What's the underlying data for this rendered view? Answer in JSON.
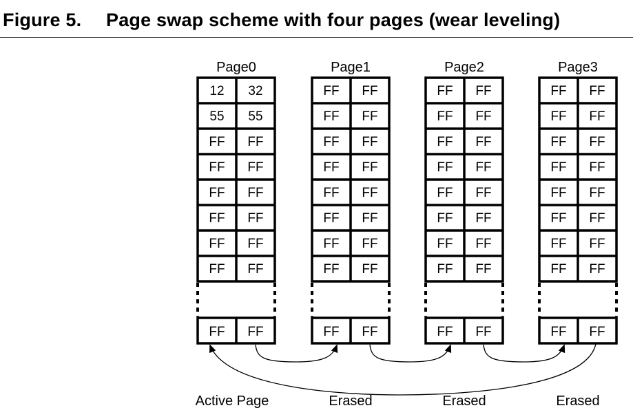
{
  "figure": {
    "number": "Figure 5.",
    "title": "Page swap scheme with four pages (wear leveling)"
  },
  "pages": [
    {
      "name": "Page0",
      "status": "Active Page",
      "rows": [
        [
          "12",
          "32"
        ],
        [
          "55",
          "55"
        ],
        [
          "FF",
          "FF"
        ],
        [
          "FF",
          "FF"
        ],
        [
          "FF",
          "FF"
        ],
        [
          "FF",
          "FF"
        ],
        [
          "FF",
          "FF"
        ],
        [
          "FF",
          "FF"
        ]
      ],
      "last_row": [
        "FF",
        "FF"
      ]
    },
    {
      "name": "Page1",
      "status": "Erased",
      "rows": [
        [
          "FF",
          "FF"
        ],
        [
          "FF",
          "FF"
        ],
        [
          "FF",
          "FF"
        ],
        [
          "FF",
          "FF"
        ],
        [
          "FF",
          "FF"
        ],
        [
          "FF",
          "FF"
        ],
        [
          "FF",
          "FF"
        ],
        [
          "FF",
          "FF"
        ]
      ],
      "last_row": [
        "FF",
        "FF"
      ]
    },
    {
      "name": "Page2",
      "status": "Erased",
      "rows": [
        [
          "FF",
          "FF"
        ],
        [
          "FF",
          "FF"
        ],
        [
          "FF",
          "FF"
        ],
        [
          "FF",
          "FF"
        ],
        [
          "FF",
          "FF"
        ],
        [
          "FF",
          "FF"
        ],
        [
          "FF",
          "FF"
        ],
        [
          "FF",
          "FF"
        ]
      ],
      "last_row": [
        "FF",
        "FF"
      ]
    },
    {
      "name": "Page3",
      "status": "Erased",
      "rows": [
        [
          "FF",
          "FF"
        ],
        [
          "FF",
          "FF"
        ],
        [
          "FF",
          "FF"
        ],
        [
          "FF",
          "FF"
        ],
        [
          "FF",
          "FF"
        ],
        [
          "FF",
          "FF"
        ],
        [
          "FF",
          "FF"
        ],
        [
          "FF",
          "FF"
        ]
      ],
      "last_row": [
        "FF",
        "FF"
      ]
    }
  ],
  "arrows": [
    {
      "from": "Page0",
      "to": "Page1"
    },
    {
      "from": "Page1",
      "to": "Page2"
    },
    {
      "from": "Page2",
      "to": "Page3"
    },
    {
      "from": "Page3",
      "to": "Page0"
    }
  ]
}
